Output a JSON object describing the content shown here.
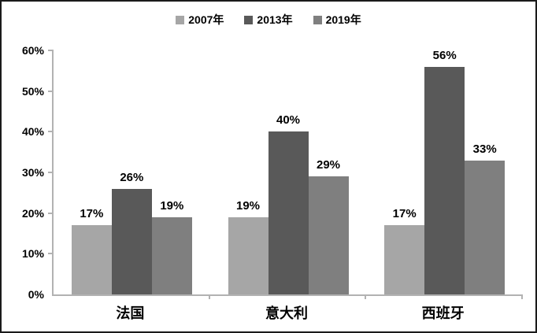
{
  "chart_data": {
    "type": "bar",
    "categories": [
      "法国",
      "意大利",
      "西班牙"
    ],
    "series": [
      {
        "name": "2007年",
        "color": "#a6a6a6",
        "values": [
          17,
          19,
          17
        ],
        "labels": [
          "17%",
          "19%",
          "17%"
        ]
      },
      {
        "name": "2013年",
        "color": "#595959",
        "values": [
          26,
          40,
          56
        ],
        "labels": [
          "26%",
          "40%",
          "56%"
        ]
      },
      {
        "name": "2019年",
        "color": "#7f7f7f",
        "values": [
          19,
          29,
          33
        ],
        "labels": [
          "19%",
          "29%",
          "33%"
        ]
      }
    ],
    "title": "",
    "xlabel": "",
    "ylabel": "",
    "ylim": [
      0,
      60
    ],
    "y_tick_labels": [
      "0%",
      "10%",
      "20%",
      "30%",
      "40%",
      "50%",
      "60%"
    ],
    "grid": "off",
    "legend_position": "top-center",
    "axis_color": "#b2b2b2",
    "data_labels": "shown above bars"
  }
}
